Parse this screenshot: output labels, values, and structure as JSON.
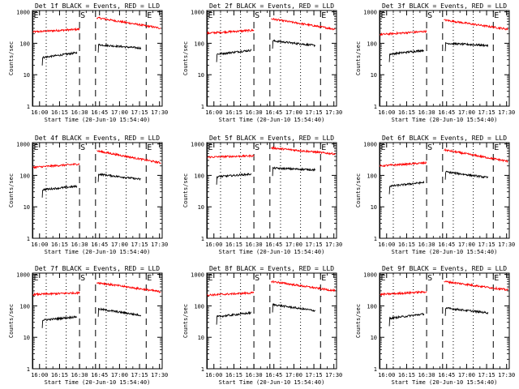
{
  "colors": {
    "events": "#000000",
    "lld": "#ff0000",
    "axis": "#000000",
    "background": "#ffffff"
  },
  "figure": {
    "xlabel": "Start Time (20-Jun-10 15:54:40)",
    "ylabel": "Counts/sec",
    "xticks": [
      "16:00",
      "16:15",
      "16:30",
      "16:45",
      "17:00",
      "17:15",
      "17:30"
    ],
    "yticks": [
      "1",
      "10",
      "100",
      "1000"
    ]
  },
  "chart_data": [
    {
      "type": "line",
      "title": "Det 1f BLACK = Events, RED = LLD",
      "y_scale": "log",
      "xlim": [
        "15:54:40",
        "17:32"
      ],
      "ylim": [
        1,
        1100
      ],
      "markers": [
        {
          "label": "E",
          "x": "15:55",
          "style": "solid"
        },
        {
          "label": "S",
          "x": "16:30",
          "style": "dashed"
        },
        {
          "label": "",
          "x": "16:42",
          "style": "dashed"
        },
        {
          "label": "E",
          "x": "17:20",
          "style": "dashed"
        }
      ],
      "dotted_lines": [
        "16:05",
        "16:20",
        "16:50",
        "17:05"
      ],
      "series": [
        {
          "color": "#ff0000",
          "segments": [
            {
              "x0": "15:55",
              "x1": "16:30",
              "y_start": 230,
              "y_end": 280
            },
            {
              "x0": "16:43",
              "x1": "17:31",
              "y_start": 650,
              "y_end": 300
            }
          ]
        },
        {
          "color": "#000000",
          "segments": [
            {
              "x0": "16:02",
              "x1": "16:28",
              "y_start": 35,
              "y_end": 50
            },
            {
              "x0": "16:44",
              "x1": "17:16",
              "y_start": 90,
              "y_end": 70
            }
          ]
        }
      ]
    },
    {
      "type": "line",
      "title": "Det 2f BLACK = Events, RED = LLD",
      "y_scale": "log",
      "xlim": [
        "15:54:40",
        "17:32"
      ],
      "ylim": [
        1,
        1100
      ],
      "markers": [
        {
          "label": "E",
          "x": "15:55",
          "style": "solid"
        },
        {
          "label": "S",
          "x": "16:30",
          "style": "dashed"
        },
        {
          "label": "",
          "x": "16:42",
          "style": "dashed"
        },
        {
          "label": "E",
          "x": "17:20",
          "style": "dashed"
        }
      ],
      "dotted_lines": [
        "16:05",
        "16:20",
        "16:50",
        "17:05"
      ],
      "series": [
        {
          "color": "#ff0000",
          "segments": [
            {
              "x0": "15:55",
              "x1": "16:30",
              "y_start": 210,
              "y_end": 260
            },
            {
              "x0": "16:43",
              "x1": "17:31",
              "y_start": 600,
              "y_end": 280
            }
          ]
        },
        {
          "color": "#000000",
          "segments": [
            {
              "x0": "16:02",
              "x1": "16:28",
              "y_start": 45,
              "y_end": 60
            },
            {
              "x0": "16:44",
              "x1": "17:16",
              "y_start": 120,
              "y_end": 85
            }
          ]
        }
      ]
    },
    {
      "type": "line",
      "title": "Det 3f BLACK = Events, RED = LLD",
      "y_scale": "log",
      "xlim": [
        "15:54:40",
        "17:32"
      ],
      "ylim": [
        1,
        1100
      ],
      "markers": [
        {
          "label": "E",
          "x": "15:55",
          "style": "solid"
        },
        {
          "label": "S",
          "x": "16:30",
          "style": "dashed"
        },
        {
          "label": "",
          "x": "16:42",
          "style": "dashed"
        },
        {
          "label": "E",
          "x": "17:20",
          "style": "dashed"
        }
      ],
      "dotted_lines": [
        "16:05",
        "16:20",
        "16:50",
        "17:05"
      ],
      "series": [
        {
          "color": "#ff0000",
          "segments": [
            {
              "x0": "15:55",
              "x1": "16:30",
              "y_start": 190,
              "y_end": 240
            },
            {
              "x0": "16:43",
              "x1": "17:31",
              "y_start": 550,
              "y_end": 280
            }
          ]
        },
        {
          "color": "#000000",
          "segments": [
            {
              "x0": "16:02",
              "x1": "16:28",
              "y_start": 45,
              "y_end": 60
            },
            {
              "x0": "16:44",
              "x1": "17:16",
              "y_start": 100,
              "y_end": 85
            }
          ]
        }
      ]
    },
    {
      "type": "line",
      "title": "Det 4f BLACK = Events, RED = LLD",
      "y_scale": "log",
      "xlim": [
        "15:54:40",
        "17:32"
      ],
      "ylim": [
        1,
        1100
      ],
      "markers": [
        {
          "label": "E",
          "x": "15:55",
          "style": "solid"
        },
        {
          "label": "S",
          "x": "16:30",
          "style": "dashed"
        },
        {
          "label": "",
          "x": "16:42",
          "style": "dashed"
        },
        {
          "label": "E",
          "x": "17:20",
          "style": "dashed"
        }
      ],
      "dotted_lines": [
        "16:05",
        "16:20",
        "16:50",
        "17:05"
      ],
      "series": [
        {
          "color": "#ff0000",
          "segments": [
            {
              "x0": "15:55",
              "x1": "16:30",
              "y_start": 180,
              "y_end": 230
            },
            {
              "x0": "16:43",
              "x1": "17:31",
              "y_start": 600,
              "y_end": 250
            }
          ]
        },
        {
          "color": "#000000",
          "segments": [
            {
              "x0": "16:02",
              "x1": "16:28",
              "y_start": 35,
              "y_end": 45
            },
            {
              "x0": "16:44",
              "x1": "17:16",
              "y_start": 110,
              "y_end": 75
            }
          ]
        }
      ]
    },
    {
      "type": "line",
      "title": "Det 5f BLACK = Events, RED = LLD",
      "y_scale": "log",
      "xlim": [
        "15:54:40",
        "17:32"
      ],
      "ylim": [
        1,
        1100
      ],
      "markers": [
        {
          "label": "E",
          "x": "15:55",
          "style": "solid"
        },
        {
          "label": "S",
          "x": "16:30",
          "style": "dashed"
        },
        {
          "label": "",
          "x": "16:42",
          "style": "dashed"
        },
        {
          "label": "E",
          "x": "17:20",
          "style": "dashed"
        }
      ],
      "dotted_lines": [
        "16:05",
        "16:20",
        "16:50",
        "17:05"
      ],
      "series": [
        {
          "color": "#ff0000",
          "segments": [
            {
              "x0": "15:55",
              "x1": "16:30",
              "y_start": 380,
              "y_end": 420
            },
            {
              "x0": "16:43",
              "x1": "17:31",
              "y_start": 750,
              "y_end": 480
            }
          ]
        },
        {
          "color": "#000000",
          "segments": [
            {
              "x0": "16:02",
              "x1": "16:28",
              "y_start": 90,
              "y_end": 110
            },
            {
              "x0": "16:44",
              "x1": "17:16",
              "y_start": 170,
              "y_end": 150
            }
          ]
        }
      ]
    },
    {
      "type": "line",
      "title": "Det 6f BLACK = Events, RED = LLD",
      "y_scale": "log",
      "xlim": [
        "15:54:40",
        "17:32"
      ],
      "ylim": [
        1,
        1100
      ],
      "markers": [
        {
          "label": "E",
          "x": "15:55",
          "style": "solid"
        },
        {
          "label": "S",
          "x": "16:30",
          "style": "dashed"
        },
        {
          "label": "",
          "x": "16:42",
          "style": "dashed"
        },
        {
          "label": "E",
          "x": "17:20",
          "style": "dashed"
        }
      ],
      "dotted_lines": [
        "16:05",
        "16:20",
        "16:50",
        "17:05"
      ],
      "series": [
        {
          "color": "#ff0000",
          "segments": [
            {
              "x0": "15:55",
              "x1": "16:30",
              "y_start": 200,
              "y_end": 250
            },
            {
              "x0": "16:43",
              "x1": "17:31",
              "y_start": 650,
              "y_end": 280
            }
          ]
        },
        {
          "color": "#000000",
          "segments": [
            {
              "x0": "16:02",
              "x1": "16:28",
              "y_start": 45,
              "y_end": 60
            },
            {
              "x0": "16:44",
              "x1": "17:16",
              "y_start": 130,
              "y_end": 85
            }
          ]
        }
      ]
    },
    {
      "type": "line",
      "title": "Det 7f BLACK = Events, RED = LLD",
      "y_scale": "log",
      "xlim": [
        "15:54:40",
        "17:32"
      ],
      "ylim": [
        1,
        1100
      ],
      "markers": [
        {
          "label": "E",
          "x": "15:55",
          "style": "solid"
        },
        {
          "label": "S",
          "x": "16:30",
          "style": "dashed"
        },
        {
          "label": "",
          "x": "16:42",
          "style": "dashed"
        },
        {
          "label": "E",
          "x": "17:20",
          "style": "dashed"
        }
      ],
      "dotted_lines": [
        "16:05",
        "16:20",
        "16:50",
        "17:05"
      ],
      "series": [
        {
          "color": "#ff0000",
          "segments": [
            {
              "x0": "15:55",
              "x1": "16:30",
              "y_start": 230,
              "y_end": 260
            },
            {
              "x0": "16:43",
              "x1": "17:31",
              "y_start": 550,
              "y_end": 280
            }
          ]
        },
        {
          "color": "#000000",
          "segments": [
            {
              "x0": "16:02",
              "x1": "16:28",
              "y_start": 35,
              "y_end": 45
            },
            {
              "x0": "16:44",
              "x1": "17:16",
              "y_start": 80,
              "y_end": 50
            }
          ]
        }
      ]
    },
    {
      "type": "line",
      "title": "Det 8f BLACK = Events, RED = LLD",
      "y_scale": "log",
      "xlim": [
        "15:54:40",
        "17:32"
      ],
      "ylim": [
        1,
        1100
      ],
      "markers": [
        {
          "label": "E",
          "x": "15:55",
          "style": "solid"
        },
        {
          "label": "S",
          "x": "16:30",
          "style": "dashed"
        },
        {
          "label": "",
          "x": "16:42",
          "style": "dashed"
        },
        {
          "label": "E",
          "x": "17:20",
          "style": "dashed"
        }
      ],
      "dotted_lines": [
        "16:05",
        "16:20",
        "16:50",
        "17:05"
      ],
      "series": [
        {
          "color": "#ff0000",
          "segments": [
            {
              "x0": "15:55",
              "x1": "16:30",
              "y_start": 220,
              "y_end": 260
            },
            {
              "x0": "16:43",
              "x1": "17:31",
              "y_start": 600,
              "y_end": 300
            }
          ]
        },
        {
          "color": "#000000",
          "segments": [
            {
              "x0": "16:02",
              "x1": "16:28",
              "y_start": 45,
              "y_end": 60
            },
            {
              "x0": "16:44",
              "x1": "17:16",
              "y_start": 110,
              "y_end": 70
            }
          ]
        }
      ]
    },
    {
      "type": "line",
      "title": "Det 9f BLACK = Events, RED = LLD",
      "y_scale": "log",
      "xlim": [
        "15:54:40",
        "17:32"
      ],
      "ylim": [
        1,
        1100
      ],
      "markers": [
        {
          "label": "E",
          "x": "15:55",
          "style": "solid"
        },
        {
          "label": "S",
          "x": "16:30",
          "style": "dashed"
        },
        {
          "label": "",
          "x": "16:42",
          "style": "dashed"
        },
        {
          "label": "E",
          "x": "17:20",
          "style": "dashed"
        }
      ],
      "dotted_lines": [
        "16:05",
        "16:20",
        "16:50",
        "17:05"
      ],
      "series": [
        {
          "color": "#ff0000",
          "segments": [
            {
              "x0": "15:55",
              "x1": "16:30",
              "y_start": 230,
              "y_end": 280
            },
            {
              "x0": "16:43",
              "x1": "17:31",
              "y_start": 600,
              "y_end": 320
            }
          ]
        },
        {
          "color": "#000000",
          "segments": [
            {
              "x0": "16:02",
              "x1": "16:28",
              "y_start": 40,
              "y_end": 55
            },
            {
              "x0": "16:44",
              "x1": "17:16",
              "y_start": 85,
              "y_end": 60
            }
          ]
        }
      ]
    }
  ]
}
